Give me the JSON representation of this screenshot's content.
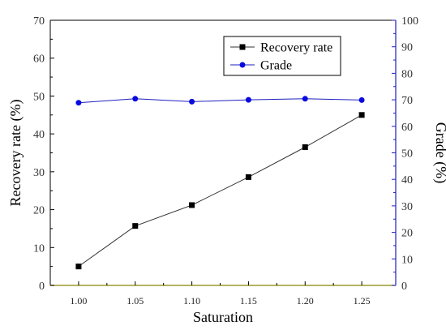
{
  "chart_data": {
    "type": "line",
    "x": [
      1.0,
      1.05,
      1.1,
      1.15,
      1.2,
      1.25
    ],
    "x_tick_labels": [
      "1.00",
      "1.05",
      "1.10",
      "1.15",
      "1.20",
      "1.25"
    ],
    "xlabel": "Saturation",
    "xlim": [
      0.975,
      1.28
    ],
    "y_left": {
      "label": "Recovery rate (%)",
      "lim": [
        0,
        70
      ],
      "ticks": [
        0,
        10,
        20,
        30,
        40,
        50,
        60,
        70
      ]
    },
    "y_right": {
      "label": "Grade (%)",
      "lim": [
        0,
        100
      ],
      "ticks": [
        0,
        10,
        20,
        30,
        40,
        50,
        60,
        70,
        80,
        90,
        100
      ],
      "color": "#1f1fbf"
    },
    "series": [
      {
        "name": "Recovery rate",
        "axis": "left",
        "marker": "square",
        "color": "#000000",
        "line_color": "#333333",
        "values": [
          5.0,
          15.7,
          21.2,
          28.6,
          36.5,
          45.0
        ]
      },
      {
        "name": "Grade",
        "axis": "right",
        "marker": "circle",
        "color": "#0a0ae0",
        "line_color": "#1f1fbf",
        "values": [
          68.9,
          70.4,
          69.3,
          70.0,
          70.4,
          69.9
        ]
      }
    ],
    "legend_position": "top-right",
    "grid": false
  }
}
